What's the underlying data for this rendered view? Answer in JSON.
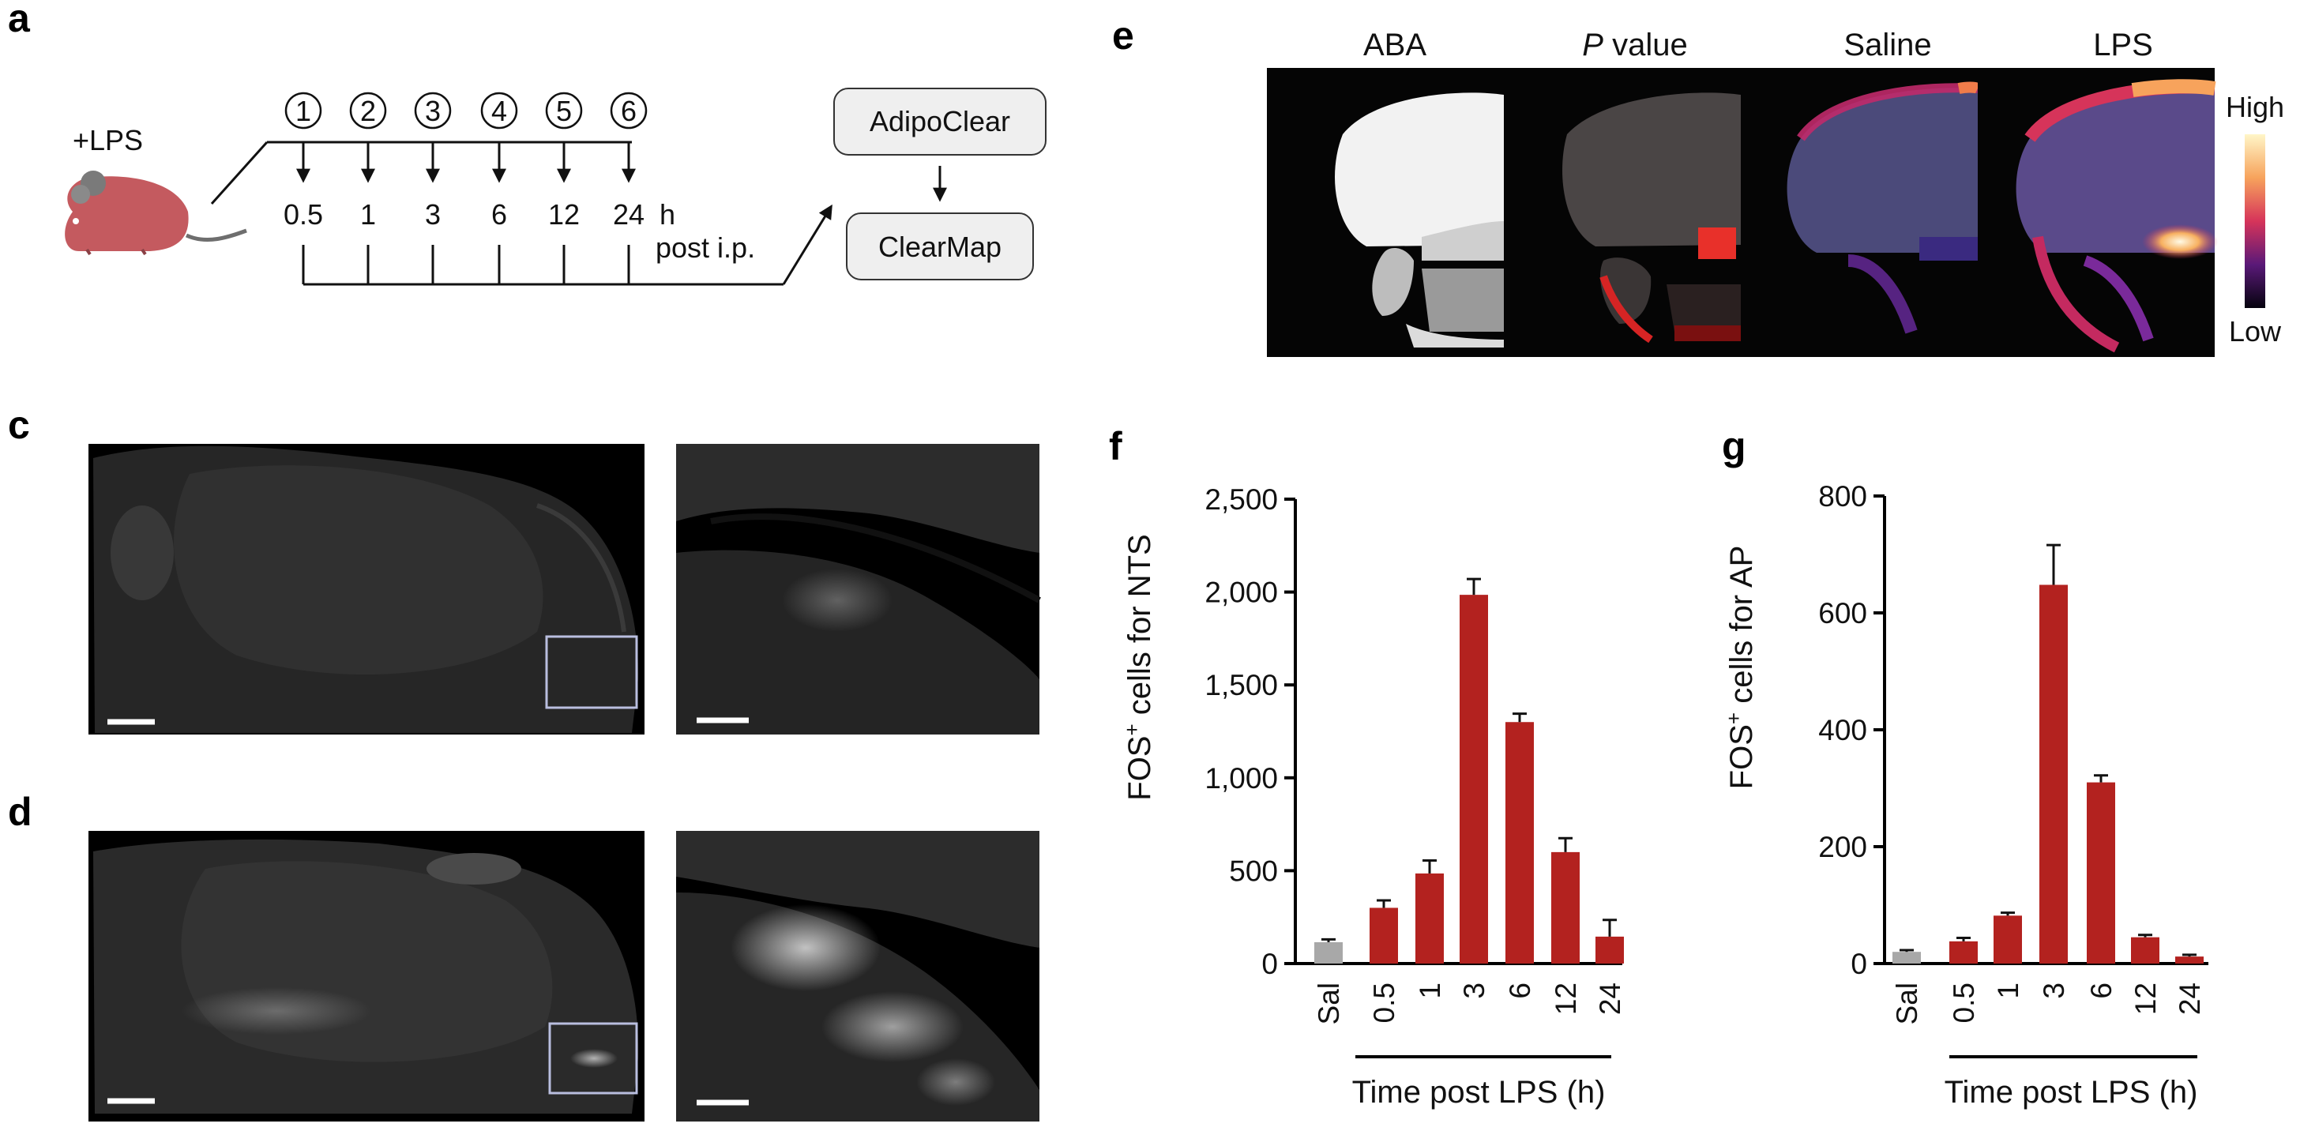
{
  "panels": {
    "a": "a",
    "c": "c",
    "d": "d",
    "e": "e",
    "f": "f",
    "g": "g"
  },
  "panel_a": {
    "treatment": "+LPS",
    "steps": [
      "1",
      "2",
      "3",
      "4",
      "5",
      "6"
    ],
    "times": [
      "0.5",
      "1",
      "3",
      "6",
      "12",
      "24"
    ],
    "unit": "h",
    "route": "post i.p.",
    "pipeline": [
      "AdipoClear",
      "ClearMap"
    ]
  },
  "panel_e": {
    "columns": [
      "ABA",
      "P",
      "value",
      "Saline",
      "LPS"
    ],
    "scale_high": "High",
    "scale_low": "Low"
  },
  "colors": {
    "bar": "#b3221f",
    "sal_bar": "#a8a8a8",
    "mouse": "#c45a5f"
  },
  "chart_data": [
    {
      "type": "bar",
      "panel": "f",
      "categories": [
        "Sal",
        "0.5",
        "1",
        "3",
        "6",
        "12",
        "24"
      ],
      "values": [
        115,
        300,
        485,
        1985,
        1300,
        600,
        145
      ],
      "errors": [
        15,
        40,
        70,
        85,
        45,
        75,
        90
      ],
      "ylabel_prefix": "FOS",
      "ylabel_sup": "+",
      "ylabel_suffix": " cells for NTS",
      "xlabel": "Time post LPS (h)",
      "ylim": [
        0,
        2500
      ],
      "yticks": [
        0,
        500,
        1000,
        1500,
        2000,
        2500
      ],
      "ytick_labels": [
        "0",
        "500",
        "1,000",
        "1,500",
        "2,000",
        "2,500"
      ]
    },
    {
      "type": "bar",
      "panel": "g",
      "categories": [
        "Sal",
        "0.5",
        "1",
        "3",
        "6",
        "12",
        "24"
      ],
      "values": [
        20,
        38,
        82,
        648,
        310,
        45,
        12
      ],
      "errors": [
        3,
        6,
        5,
        68,
        12,
        4,
        3
      ],
      "ylabel_prefix": "FOS",
      "ylabel_sup": "+",
      "ylabel_suffix": " cells for AP",
      "xlabel": "Time post LPS (h)",
      "ylim": [
        0,
        800
      ],
      "yticks": [
        0,
        200,
        400,
        600,
        800
      ],
      "ytick_labels": [
        "0",
        "200",
        "400",
        "600",
        "800"
      ]
    }
  ]
}
